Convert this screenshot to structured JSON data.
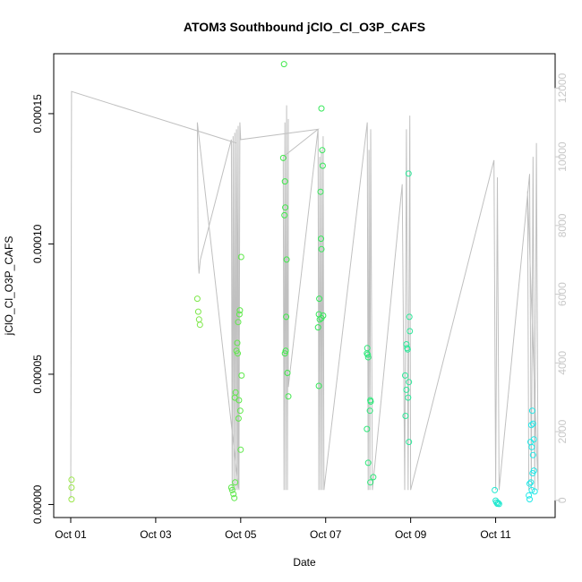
{
  "chart_data": {
    "type": "scatter",
    "title": "ATOM3 Southbound jClO_Cl_O3P_CAFS",
    "xlabel": "Date",
    "ylabel": "jClO_Cl_O3P_CAFS",
    "x_tick_labels": [
      "Oct 01",
      "Oct 03",
      "Oct 05",
      "Oct 07",
      "Oct 09",
      "Oct 11"
    ],
    "x_ticks_days": [
      1,
      3,
      5,
      7,
      9,
      11
    ],
    "xlim_days": [
      0.6,
      12.4
    ],
    "y_ticks": [
      0.0,
      5e-05,
      0.0001,
      0.00015
    ],
    "y_tick_labels": [
      "0.00000",
      "0.00005",
      "0.00010",
      "0.00015"
    ],
    "ylim": [
      -5e-06,
      0.000173
    ],
    "y2_ticks": [
      0,
      2000,
      4000,
      6000,
      8000,
      10000,
      12000
    ],
    "y2_tick_labels": [
      "0",
      "2000",
      "4000",
      "6000",
      "8000",
      "10000",
      "12000"
    ],
    "y2lim": [
      -500,
      13000
    ],
    "y2_color": "#c8c8c8",
    "grid": false,
    "points": [
      {
        "x": 1.02,
        "y": 9.5e-06,
        "color": "#9be64a"
      },
      {
        "x": 1.02,
        "y": 6.5e-06,
        "color": "#9be64a"
      },
      {
        "x": 1.02,
        "y": 2e-06,
        "color": "#9be64a"
      },
      {
        "x": 3.98,
        "y": 7.9e-05,
        "color": "#7ee84a"
      },
      {
        "x": 4.0,
        "y": 7.4e-05,
        "color": "#7ee84a"
      },
      {
        "x": 4.02,
        "y": 7.1e-05,
        "color": "#7ee84a"
      },
      {
        "x": 4.04,
        "y": 6.9e-05,
        "color": "#7ee84a"
      },
      {
        "x": 4.78,
        "y": 6.5e-06,
        "color": "#5ee84a"
      },
      {
        "x": 4.8,
        "y": 5.5e-06,
        "color": "#5ee84a"
      },
      {
        "x": 4.83,
        "y": 4e-06,
        "color": "#5ee84a"
      },
      {
        "x": 4.85,
        "y": 2.5e-06,
        "color": "#5ee84a"
      },
      {
        "x": 4.87,
        "y": 8.5e-06,
        "color": "#5ee84a"
      },
      {
        "x": 4.86,
        "y": 4.1e-05,
        "color": "#5ee84a"
      },
      {
        "x": 4.88,
        "y": 4.3e-05,
        "color": "#5ee84a"
      },
      {
        "x": 4.9,
        "y": 5.9e-05,
        "color": "#5ee84a"
      },
      {
        "x": 4.92,
        "y": 6.2e-05,
        "color": "#5ee84a"
      },
      {
        "x": 4.93,
        "y": 5.8e-05,
        "color": "#5ee84a"
      },
      {
        "x": 4.94,
        "y": 7e-05,
        "color": "#5ee84a"
      },
      {
        "x": 4.95,
        "y": 3.3e-05,
        "color": "#5ee84a"
      },
      {
        "x": 4.96,
        "y": 4e-05,
        "color": "#5ee84a"
      },
      {
        "x": 4.97,
        "y": 7.3e-05,
        "color": "#5ee84a"
      },
      {
        "x": 4.98,
        "y": 7.45e-05,
        "color": "#5ee84a"
      },
      {
        "x": 4.99,
        "y": 3.6e-05,
        "color": "#5ee84a"
      },
      {
        "x": 5.0,
        "y": 2.1e-05,
        "color": "#5ee84a"
      },
      {
        "x": 5.01,
        "y": 9.5e-05,
        "color": "#5ee84a"
      },
      {
        "x": 5.02,
        "y": 4.95e-05,
        "color": "#5ee84a"
      },
      {
        "x": 6.02,
        "y": 0.000169,
        "color": "#3fe84a"
      },
      {
        "x": 6.0,
        "y": 0.000133,
        "color": "#3fe84a"
      },
      {
        "x": 6.04,
        "y": 0.000124,
        "color": "#3fe84a"
      },
      {
        "x": 6.05,
        "y": 0.000114,
        "color": "#3fe84a"
      },
      {
        "x": 6.03,
        "y": 0.000111,
        "color": "#3fe84a"
      },
      {
        "x": 6.08,
        "y": 9.4e-05,
        "color": "#3fe84a"
      },
      {
        "x": 6.07,
        "y": 7.2e-05,
        "color": "#3fe84a"
      },
      {
        "x": 6.06,
        "y": 5.9e-05,
        "color": "#3fe84a"
      },
      {
        "x": 6.04,
        "y": 5.8e-05,
        "color": "#3fe84a"
      },
      {
        "x": 6.1,
        "y": 5.05e-05,
        "color": "#3fe84a"
      },
      {
        "x": 6.12,
        "y": 4.15e-05,
        "color": "#3fe84a"
      },
      {
        "x": 6.9,
        "y": 0.000152,
        "color": "#36e85a"
      },
      {
        "x": 6.92,
        "y": 0.000136,
        "color": "#36e85a"
      },
      {
        "x": 6.93,
        "y": 0.00013,
        "color": "#36e85a"
      },
      {
        "x": 6.88,
        "y": 0.00012,
        "color": "#36e85a"
      },
      {
        "x": 6.89,
        "y": 0.000102,
        "color": "#36e85a"
      },
      {
        "x": 6.9,
        "y": 9.8e-05,
        "color": "#36e85a"
      },
      {
        "x": 6.85,
        "y": 7.9e-05,
        "color": "#36e85a"
      },
      {
        "x": 6.84,
        "y": 7.3e-05,
        "color": "#36e85a"
      },
      {
        "x": 6.94,
        "y": 7.25e-05,
        "color": "#36e85a"
      },
      {
        "x": 6.9,
        "y": 7.15e-05,
        "color": "#36e85a"
      },
      {
        "x": 6.86,
        "y": 7.1e-05,
        "color": "#36e85a"
      },
      {
        "x": 6.82,
        "y": 6.8e-05,
        "color": "#36e85a"
      },
      {
        "x": 6.84,
        "y": 4.55e-05,
        "color": "#36e85a"
      },
      {
        "x": 7.98,
        "y": 6e-05,
        "color": "#2ee87a"
      },
      {
        "x": 7.99,
        "y": 5.75e-05,
        "color": "#2ee87a"
      },
      {
        "x": 8.0,
        "y": 5.65e-05,
        "color": "#2ee87a"
      },
      {
        "x": 7.97,
        "y": 5.8e-05,
        "color": "#2ee87a"
      },
      {
        "x": 8.05,
        "y": 4e-05,
        "color": "#2ee87a"
      },
      {
        "x": 8.06,
        "y": 3.95e-05,
        "color": "#2ee87a"
      },
      {
        "x": 8.04,
        "y": 3.6e-05,
        "color": "#2ee87a"
      },
      {
        "x": 7.97,
        "y": 2.9e-05,
        "color": "#2ee87a"
      },
      {
        "x": 8.0,
        "y": 1.6e-05,
        "color": "#2ee87a"
      },
      {
        "x": 8.12,
        "y": 1.05e-05,
        "color": "#2ee87a"
      },
      {
        "x": 8.05,
        "y": 8.5e-06,
        "color": "#2ee87a"
      },
      {
        "x": 8.95,
        "y": 0.000127,
        "color": "#2ee89a"
      },
      {
        "x": 8.97,
        "y": 7.2e-05,
        "color": "#2ee89a"
      },
      {
        "x": 8.98,
        "y": 6.65e-05,
        "color": "#2ee89a"
      },
      {
        "x": 8.9,
        "y": 6.15e-05,
        "color": "#2ee89a"
      },
      {
        "x": 8.93,
        "y": 5.95e-05,
        "color": "#2ee89a"
      },
      {
        "x": 8.92,
        "y": 6e-05,
        "color": "#2ee89a"
      },
      {
        "x": 8.87,
        "y": 4.95e-05,
        "color": "#2ee89a"
      },
      {
        "x": 8.96,
        "y": 4.7e-05,
        "color": "#2ee89a"
      },
      {
        "x": 8.9,
        "y": 4.4e-05,
        "color": "#2ee89a"
      },
      {
        "x": 8.94,
        "y": 4.1e-05,
        "color": "#2ee89a"
      },
      {
        "x": 8.88,
        "y": 3.4e-05,
        "color": "#2ee89a"
      },
      {
        "x": 8.96,
        "y": 2.4e-05,
        "color": "#2ee89a"
      },
      {
        "x": 10.98,
        "y": 5.5e-06,
        "color": "#22e8d0"
      },
      {
        "x": 11.0,
        "y": 1.5e-06,
        "color": "#22e8d0"
      },
      {
        "x": 11.02,
        "y": 8e-07,
        "color": "#22e8d0"
      },
      {
        "x": 11.04,
        "y": 3e-07,
        "color": "#22e8d0"
      },
      {
        "x": 11.06,
        "y": 6e-07,
        "color": "#22e8d0"
      },
      {
        "x": 11.08,
        "y": 2e-07,
        "color": "#22e8d0"
      },
      {
        "x": 11.86,
        "y": 3.6e-05,
        "color": "#22e8e8"
      },
      {
        "x": 11.88,
        "y": 3.1e-05,
        "color": "#22e8e8"
      },
      {
        "x": 11.84,
        "y": 3.05e-05,
        "color": "#22e8e8"
      },
      {
        "x": 11.9,
        "y": 2.5e-05,
        "color": "#22e8e8"
      },
      {
        "x": 11.82,
        "y": 2.4e-05,
        "color": "#22e8e8"
      },
      {
        "x": 11.85,
        "y": 2.2e-05,
        "color": "#22e8e8"
      },
      {
        "x": 11.88,
        "y": 1.9e-05,
        "color": "#22e8e8"
      },
      {
        "x": 11.9,
        "y": 1.3e-05,
        "color": "#22e8e8"
      },
      {
        "x": 11.87,
        "y": 1.2e-05,
        "color": "#22e8e8"
      },
      {
        "x": 11.8,
        "y": 8e-06,
        "color": "#22e8e8"
      },
      {
        "x": 11.83,
        "y": 8.5e-06,
        "color": "#22e8e8"
      },
      {
        "x": 11.85,
        "y": 5.5e-06,
        "color": "#22e8e8"
      },
      {
        "x": 11.92,
        "y": 5e-06,
        "color": "#22e8e8"
      },
      {
        "x": 11.78,
        "y": 3.5e-06,
        "color": "#22e8e8"
      },
      {
        "x": 11.8,
        "y": 2e-06,
        "color": "#22e8e8"
      }
    ],
    "secondary_line": {
      "color": "#c0c0c0",
      "x": [
        1.0,
        1.02,
        4.9,
        4.95,
        3.98,
        4.0,
        4.02,
        4.05,
        4.78,
        4.8,
        4.82,
        4.84,
        4.86,
        4.88,
        4.9,
        4.92,
        4.94,
        4.96,
        4.98,
        5.0,
        6.82,
        6.0,
        6.02,
        6.04,
        6.06,
        6.08,
        6.1,
        6.12,
        6.12,
        6.82,
        6.84,
        6.86,
        6.88,
        6.9,
        6.92,
        6.94,
        6.96,
        7.98,
        8.0,
        8.02,
        8.04,
        8.06,
        8.1,
        8.8,
        8.86,
        8.9,
        8.94,
        8.98,
        9.0,
        10.96,
        11.0,
        11.04,
        11.08,
        11.8,
        11.84,
        11.88,
        11.92,
        11.96,
        12.0,
        11.75,
        11.78
      ],
      "y": [
        50,
        11900,
        10400,
        350,
        11000,
        7000,
        6600,
        7000,
        10500,
        300,
        10600,
        300,
        10700,
        300,
        10800,
        300,
        10900,
        300,
        11000,
        10500,
        10800,
        10000,
        300,
        11000,
        300,
        11500,
        300,
        11100,
        3300,
        10800,
        300,
        10000,
        300,
        10200,
        300,
        10600,
        300,
        11000,
        300,
        10200,
        300,
        10800,
        300,
        9200,
        300,
        10800,
        300,
        11200,
        300,
        9900,
        300,
        9400,
        300,
        9500,
        300,
        10000,
        300,
        10400,
        300,
        9000,
        300
      ]
    }
  }
}
